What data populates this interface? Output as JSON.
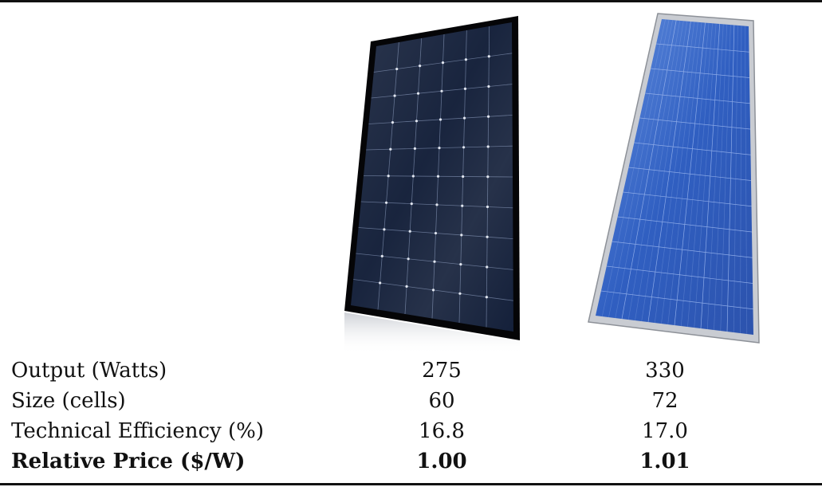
{
  "panels": [
    {
      "id": "monocrystalline",
      "frame_color": "#0b0b0d",
      "cell_color": "#1a2744",
      "busbar_color": "#c8ccd6"
    },
    {
      "id": "polycrystalline",
      "frame_color": "#b9bcc2",
      "cell_color": "#2f5fc4",
      "busbar_color": "#9fb6e8"
    }
  ],
  "table": {
    "rows": [
      {
        "label": "Output (Watts)",
        "values": [
          "275",
          "330"
        ],
        "bold": false
      },
      {
        "label": "Size (cells)",
        "values": [
          "60",
          "72"
        ],
        "bold": false
      },
      {
        "label": "Technical Efficiency (%)",
        "values": [
          "16.8",
          "17.0"
        ],
        "bold": false
      },
      {
        "label": "Relative Price ($/W)",
        "values": [
          "1.00",
          "1.01"
        ],
        "bold": true
      }
    ]
  }
}
